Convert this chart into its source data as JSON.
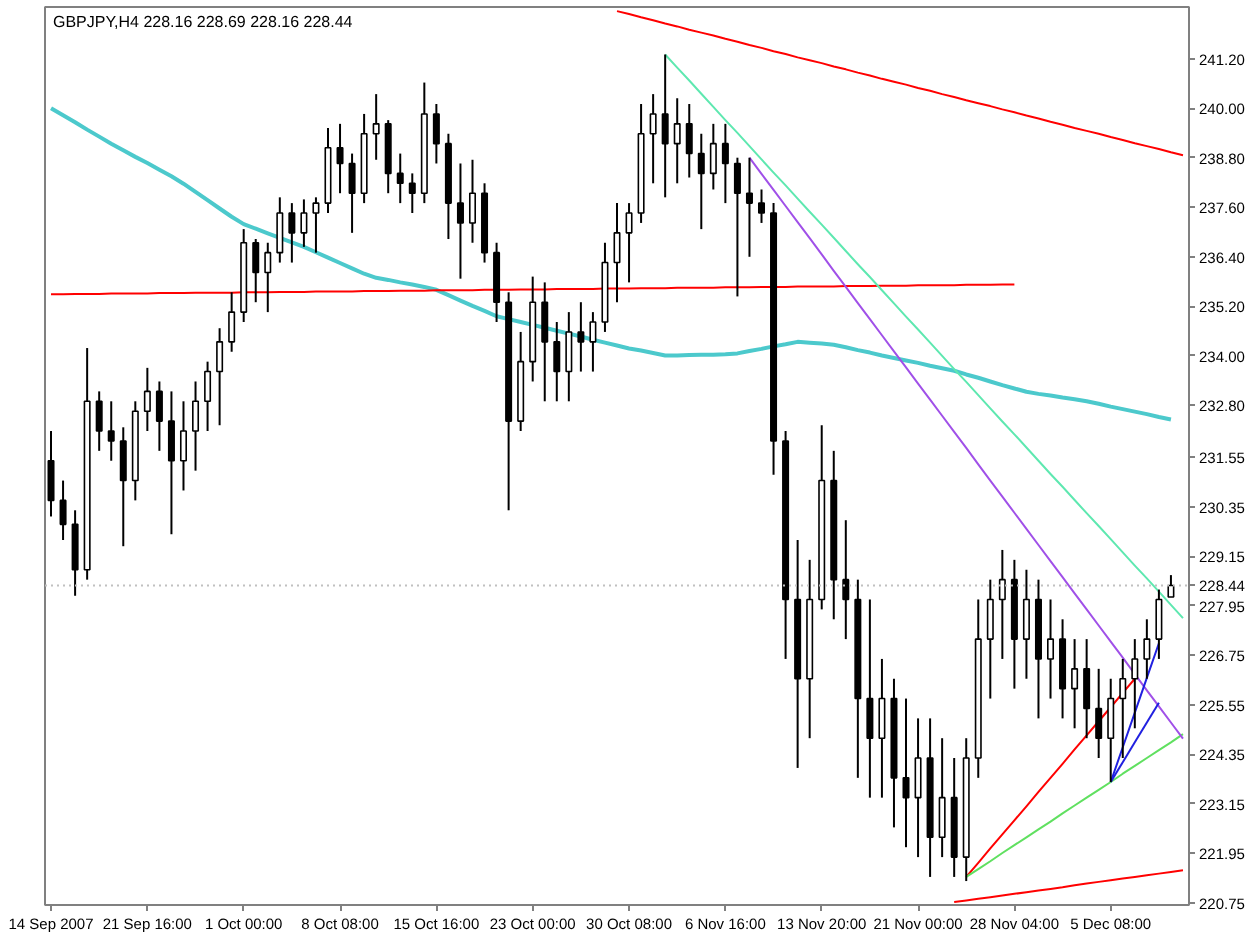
{
  "chart_data": {
    "type": "candlestick",
    "title": "GBPJPY,H4 228.16 228.69 228.16 228.44",
    "categories": [
      "14 Sep 2007",
      null,
      null,
      null,
      null,
      null,
      null,
      null,
      "21 Sep 16:00",
      null,
      null,
      null,
      null,
      null,
      null,
      null,
      "1 Oct 00:00",
      null,
      null,
      null,
      null,
      null,
      null,
      null,
      "8 Oct 08:00",
      null,
      null,
      null,
      null,
      null,
      null,
      null,
      "15 Oct 16:00",
      null,
      null,
      null,
      null,
      null,
      null,
      null,
      "23 Oct 00:00",
      null,
      null,
      null,
      null,
      null,
      null,
      null,
      "30 Oct 08:00",
      null,
      null,
      null,
      null,
      null,
      null,
      null,
      "6 Nov 16:00",
      null,
      null,
      null,
      null,
      null,
      null,
      null,
      "13 Nov 20:00",
      null,
      null,
      null,
      null,
      null,
      null,
      null,
      "21 Nov 00:00",
      null,
      null,
      null,
      null,
      null,
      null,
      null,
      "28 Nov 04:00",
      null,
      null,
      null,
      null,
      null,
      null,
      null,
      "5 Dec 08:00",
      null,
      null,
      null,
      null,
      null,
      null
    ],
    "ylim": [
      220.7,
      242.45
    ],
    "yticks": [
      {
        "value": 220.75,
        "label": "220.75"
      },
      {
        "value": 221.95,
        "label": "221.95"
      },
      {
        "value": 223.15,
        "label": "223.15"
      },
      {
        "value": 224.35,
        "label": "224.35"
      },
      {
        "value": 225.55,
        "label": "225.55"
      },
      {
        "value": 226.75,
        "label": "226.75"
      },
      {
        "value": 227.95,
        "label": "227.95"
      },
      {
        "value": 229.15,
        "label": "229.15"
      },
      {
        "value": 230.35,
        "label": "230.35"
      },
      {
        "value": 231.55,
        "label": "231.55"
      },
      {
        "value": 232.8,
        "label": "232.80"
      },
      {
        "value": 234.0,
        "label": "234.00"
      },
      {
        "value": 235.2,
        "label": "235.20"
      },
      {
        "value": 236.4,
        "label": "236.40"
      },
      {
        "value": 237.6,
        "label": "237.60"
      },
      {
        "value": 238.8,
        "label": "238.80"
      },
      {
        "value": 240.0,
        "label": "240.00"
      },
      {
        "value": 241.2,
        "label": "241.20"
      }
    ],
    "ref_lines": [
      {
        "axis": "y",
        "value": 228.44,
        "label": "228.44",
        "color": "#c0c0c0",
        "line_style": "dotted"
      }
    ],
    "series": [
      {
        "color": "#000000",
        "ohlc": [
          [
            231.46,
            232.18,
            230.11,
            230.5
          ],
          [
            230.5,
            230.98,
            229.54,
            229.92
          ],
          [
            229.92,
            230.26,
            228.19,
            228.82
          ],
          [
            228.82,
            234.19,
            228.58,
            232.9
          ],
          [
            232.9,
            233.14,
            231.7,
            232.18
          ],
          [
            232.18,
            232.9,
            231.46,
            231.94
          ],
          [
            231.94,
            232.27,
            229.39,
            230.98
          ],
          [
            230.98,
            232.9,
            230.5,
            232.66
          ],
          [
            232.66,
            233.71,
            232.18,
            233.14
          ],
          [
            233.14,
            233.38,
            231.7,
            232.42
          ],
          [
            232.42,
            233.14,
            229.68,
            231.46
          ],
          [
            231.46,
            232.9,
            230.74,
            232.18
          ],
          [
            232.18,
            233.38,
            231.22,
            232.9
          ],
          [
            232.9,
            233.86,
            232.18,
            233.62
          ],
          [
            233.62,
            234.67,
            232.32,
            234.34
          ],
          [
            234.34,
            235.54,
            234.1,
            235.06
          ],
          [
            235.06,
            237.07,
            234.82,
            236.74
          ],
          [
            236.74,
            236.83,
            235.3,
            236.02
          ],
          [
            236.02,
            236.74,
            235.06,
            236.5
          ],
          [
            236.5,
            237.84,
            236.26,
            237.46
          ],
          [
            237.46,
            237.7,
            236.26,
            236.98
          ],
          [
            236.98,
            237.79,
            236.64,
            237.46
          ],
          [
            237.46,
            237.84,
            236.5,
            237.7
          ],
          [
            237.7,
            239.52,
            237.46,
            239.04
          ],
          [
            239.04,
            239.62,
            237.94,
            238.66
          ],
          [
            238.66,
            238.9,
            236.98,
            237.94
          ],
          [
            237.94,
            239.86,
            237.7,
            239.38
          ],
          [
            239.38,
            240.34,
            238.75,
            239.62
          ],
          [
            239.62,
            239.71,
            237.94,
            238.42
          ],
          [
            238.42,
            238.9,
            237.7,
            238.18
          ],
          [
            238.18,
            238.42,
            237.46,
            237.94
          ],
          [
            237.94,
            240.62,
            237.7,
            239.86
          ],
          [
            239.86,
            240.1,
            238.66,
            239.14
          ],
          [
            239.14,
            239.38,
            236.83,
            237.7
          ],
          [
            237.7,
            238.66,
            235.87,
            237.22
          ],
          [
            237.22,
            238.75,
            236.74,
            237.94
          ],
          [
            237.94,
            238.18,
            236.26,
            236.5
          ],
          [
            236.5,
            236.74,
            234.82,
            235.3
          ],
          [
            235.3,
            235.54,
            230.26,
            232.42
          ],
          [
            232.42,
            234.58,
            232.18,
            233.86
          ],
          [
            233.86,
            235.92,
            233.38,
            235.3
          ],
          [
            235.3,
            235.78,
            232.9,
            234.34
          ],
          [
            234.34,
            234.82,
            232.9,
            233.62
          ],
          [
            233.62,
            235.06,
            232.9,
            234.58
          ],
          [
            234.58,
            235.3,
            233.62,
            234.34
          ],
          [
            234.34,
            235.06,
            233.62,
            234.82
          ],
          [
            234.82,
            236.74,
            234.58,
            236.26
          ],
          [
            236.26,
            237.7,
            235.3,
            236.98
          ],
          [
            236.98,
            237.7,
            235.78,
            237.46
          ],
          [
            237.46,
            240.1,
            237.22,
            239.38
          ],
          [
            239.38,
            240.34,
            238.18,
            239.86
          ],
          [
            239.86,
            241.3,
            237.84,
            239.14
          ],
          [
            239.14,
            240.24,
            238.18,
            239.62
          ],
          [
            239.62,
            240.1,
            238.32,
            238.9
          ],
          [
            238.9,
            239.38,
            237.07,
            238.42
          ],
          [
            238.42,
            239.62,
            238.03,
            239.14
          ],
          [
            239.14,
            239.62,
            237.7,
            238.66
          ],
          [
            238.66,
            238.8,
            235.44,
            237.94
          ],
          [
            237.94,
            238.8,
            236.4,
            237.7
          ],
          [
            237.7,
            238.03,
            237.22,
            237.46
          ],
          [
            237.46,
            237.7,
            231.12,
            231.94
          ],
          [
            231.94,
            232.18,
            226.66,
            228.1
          ],
          [
            228.1,
            229.54,
            224.02,
            226.18
          ],
          [
            226.18,
            229.06,
            224.74,
            228.1
          ],
          [
            228.1,
            232.32,
            227.86,
            230.98
          ],
          [
            230.98,
            231.7,
            227.62,
            228.58
          ],
          [
            228.58,
            230.02,
            227.14,
            228.1
          ],
          [
            228.1,
            228.58,
            223.78,
            225.7
          ],
          [
            225.7,
            228.1,
            223.3,
            224.74
          ],
          [
            224.74,
            226.66,
            223.3,
            225.7
          ],
          [
            225.7,
            226.18,
            222.58,
            223.78
          ],
          [
            223.78,
            225.7,
            222.1,
            223.3
          ],
          [
            223.3,
            225.22,
            221.86,
            224.26
          ],
          [
            224.26,
            225.22,
            221.38,
            222.34
          ],
          [
            222.34,
            224.74,
            221.86,
            223.3
          ],
          [
            223.3,
            224.26,
            221.38,
            221.86
          ],
          [
            221.86,
            224.74,
            221.28,
            224.26
          ],
          [
            224.26,
            228.1,
            223.78,
            227.14
          ],
          [
            227.14,
            228.58,
            225.7,
            228.1
          ],
          [
            228.1,
            229.3,
            226.66,
            228.58
          ],
          [
            228.58,
            229.06,
            225.94,
            227.14
          ],
          [
            227.14,
            228.82,
            226.18,
            228.1
          ],
          [
            228.1,
            228.58,
            225.22,
            226.66
          ],
          [
            226.66,
            228.1,
            225.7,
            227.14
          ],
          [
            227.14,
            227.62,
            225.22,
            225.94
          ],
          [
            225.94,
            227.14,
            224.98,
            226.42
          ],
          [
            226.42,
            227.14,
            224.74,
            225.46
          ],
          [
            225.46,
            226.42,
            224.26,
            224.74
          ],
          [
            224.74,
            226.18,
            223.68,
            225.7
          ],
          [
            225.7,
            226.66,
            224.26,
            226.18
          ],
          [
            226.18,
            227.14,
            224.98,
            226.66
          ],
          [
            226.66,
            227.62,
            226.18,
            227.14
          ],
          [
            227.14,
            228.34,
            226.66,
            228.1
          ],
          [
            228.16,
            228.69,
            228.16,
            228.44
          ],
          null
        ]
      },
      {
        "type": "line",
        "color": "#4cc9cc",
        "values": [
          240.0,
          239.83,
          239.66,
          239.48,
          239.31,
          239.14,
          238.98,
          238.82,
          238.67,
          238.51,
          238.35,
          238.17,
          237.97,
          237.77,
          237.57,
          237.37,
          237.19,
          237.08,
          236.97,
          236.86,
          236.75,
          236.64,
          236.51,
          236.38,
          236.25,
          236.12,
          235.99,
          235.89,
          235.84,
          235.78,
          235.73,
          235.67,
          235.6,
          235.47,
          235.34,
          235.21,
          235.09,
          234.96,
          234.89,
          234.82,
          234.75,
          234.68,
          234.61,
          234.54,
          234.47,
          234.39,
          234.32,
          234.25,
          234.18,
          234.13,
          234.07,
          234.01,
          234.01,
          234.02,
          234.03,
          234.03,
          234.04,
          234.06,
          234.12,
          234.17,
          234.23,
          234.28,
          234.34,
          234.32,
          234.3,
          234.27,
          234.21,
          234.14,
          234.08,
          234.01,
          233.95,
          233.89,
          233.83,
          233.76,
          233.7,
          233.64,
          233.55,
          233.47,
          233.38,
          233.29,
          233.21,
          233.13,
          233.08,
          233.04,
          232.99,
          232.95,
          232.9,
          232.84,
          232.77,
          232.71,
          232.65,
          232.59,
          232.52,
          232.46,
          null
        ]
      },
      {
        "type": "line",
        "color": "#ff0000",
        "values": [
          235.49,
          235.49,
          235.5,
          235.5,
          235.5,
          235.51,
          235.51,
          235.51,
          235.51,
          235.52,
          235.52,
          235.52,
          235.53,
          235.53,
          235.53,
          235.53,
          235.54,
          235.54,
          235.54,
          235.55,
          235.55,
          235.55,
          235.56,
          235.56,
          235.56,
          235.56,
          235.57,
          235.57,
          235.57,
          235.58,
          235.58,
          235.58,
          235.59,
          235.59,
          235.59,
          235.59,
          235.6,
          235.6,
          235.6,
          235.61,
          235.61,
          235.61,
          235.62,
          235.62,
          235.62,
          235.62,
          235.63,
          235.63,
          235.63,
          235.64,
          235.64,
          235.64,
          235.65,
          235.65,
          235.65,
          235.65,
          235.66,
          235.66,
          235.66,
          235.67,
          235.67,
          235.67,
          235.68,
          235.68,
          235.68,
          235.68,
          235.69,
          235.69,
          235.69,
          235.7,
          235.7,
          235.7,
          235.71,
          235.71,
          235.71,
          235.71,
          235.72,
          235.72,
          235.72,
          235.73,
          235.73,
          null,
          null,
          null,
          null,
          null,
          null,
          null,
          null,
          null,
          null,
          null,
          null,
          null,
          null
        ]
      },
      {
        "type": "line",
        "color": "#ff0000",
        "values": [
          null,
          null,
          null,
          null,
          null,
          null,
          null,
          null,
          null,
          null,
          null,
          null,
          null,
          null,
          null,
          null,
          null,
          null,
          null,
          null,
          null,
          null,
          null,
          null,
          null,
          null,
          null,
          null,
          null,
          null,
          null,
          null,
          null,
          null,
          null,
          null,
          null,
          null,
          null,
          null,
          null,
          null,
          null,
          null,
          null,
          null,
          null,
          242.35,
          242.28,
          242.2,
          242.13,
          242.05,
          241.98,
          241.9,
          241.83,
          241.76,
          241.68,
          241.61,
          241.53,
          241.46,
          241.38,
          241.31,
          241.23,
          241.16,
          241.09,
          241.01,
          240.94,
          240.86,
          240.79,
          240.71,
          240.64,
          240.57,
          240.49,
          240.42,
          240.34,
          240.27,
          240.19,
          240.12,
          240.05,
          239.97,
          239.9,
          239.82,
          239.75,
          239.67,
          239.6,
          239.52,
          239.45,
          239.38,
          239.3,
          239.23,
          239.15,
          239.08,
          239.01,
          238.93,
          238.86
        ]
      },
      {
        "type": "line",
        "color": "#ff0000",
        "values": [
          null,
          null,
          null,
          null,
          null,
          null,
          null,
          null,
          null,
          null,
          null,
          null,
          null,
          null,
          null,
          null,
          null,
          null,
          null,
          null,
          null,
          null,
          null,
          null,
          null,
          null,
          null,
          null,
          null,
          null,
          null,
          null,
          null,
          null,
          null,
          null,
          null,
          null,
          null,
          null,
          null,
          null,
          null,
          null,
          null,
          null,
          null,
          null,
          null,
          null,
          null,
          null,
          null,
          null,
          null,
          null,
          null,
          null,
          null,
          null,
          null,
          null,
          null,
          null,
          null,
          null,
          null,
          null,
          null,
          null,
          null,
          null,
          null,
          null,
          null,
          220.77,
          220.81,
          220.85,
          220.89,
          220.93,
          220.97,
          221.01,
          221.05,
          221.09,
          221.13,
          221.18,
          221.22,
          221.26,
          221.3,
          221.34,
          221.38,
          221.42,
          221.46,
          221.5,
          221.54
        ]
      },
      {
        "type": "line",
        "color": "#ff0000",
        "values": [
          null,
          null,
          null,
          null,
          null,
          null,
          null,
          null,
          null,
          null,
          null,
          null,
          null,
          null,
          null,
          null,
          null,
          null,
          null,
          null,
          null,
          null,
          null,
          null,
          null,
          null,
          null,
          null,
          null,
          null,
          null,
          null,
          null,
          null,
          null,
          null,
          null,
          null,
          null,
          null,
          null,
          null,
          null,
          null,
          null,
          null,
          null,
          null,
          null,
          null,
          null,
          null,
          null,
          null,
          null,
          null,
          null,
          null,
          null,
          null,
          null,
          null,
          null,
          null,
          null,
          null,
          null,
          null,
          null,
          null,
          null,
          null,
          null,
          null,
          null,
          null,
          221.38,
          221.72,
          222.07,
          222.41,
          222.75,
          223.09,
          223.44,
          223.78,
          224.12,
          224.47,
          224.81,
          225.15,
          225.49,
          225.84,
          226.18,
          null,
          null,
          null,
          null
        ]
      },
      {
        "type": "line",
        "color": "#60e060",
        "values": [
          null,
          null,
          null,
          null,
          null,
          null,
          null,
          null,
          null,
          null,
          null,
          null,
          null,
          null,
          null,
          null,
          null,
          null,
          null,
          null,
          null,
          null,
          null,
          null,
          null,
          null,
          null,
          null,
          null,
          null,
          null,
          null,
          null,
          null,
          null,
          null,
          null,
          null,
          null,
          null,
          null,
          null,
          null,
          null,
          null,
          null,
          null,
          null,
          null,
          null,
          null,
          null,
          null,
          null,
          null,
          null,
          null,
          null,
          null,
          null,
          null,
          null,
          null,
          null,
          null,
          null,
          null,
          null,
          null,
          null,
          null,
          null,
          null,
          null,
          null,
          null,
          221.38,
          221.57,
          221.76,
          221.96,
          222.15,
          222.34,
          222.53,
          222.72,
          222.92,
          223.11,
          223.3,
          223.49,
          223.68,
          223.88,
          224.07,
          224.26,
          224.45,
          224.64,
          224.84
        ]
      },
      {
        "type": "line",
        "color": "#a050e8",
        "values": [
          null,
          null,
          null,
          null,
          null,
          null,
          null,
          null,
          null,
          null,
          null,
          null,
          null,
          null,
          null,
          null,
          null,
          null,
          null,
          null,
          null,
          null,
          null,
          null,
          null,
          null,
          null,
          null,
          null,
          null,
          null,
          null,
          null,
          null,
          null,
          null,
          null,
          null,
          null,
          null,
          null,
          null,
          null,
          null,
          null,
          null,
          null,
          null,
          null,
          null,
          null,
          null,
          null,
          null,
          null,
          null,
          null,
          null,
          238.8,
          238.41,
          238.02,
          237.63,
          237.24,
          236.85,
          236.46,
          236.06,
          235.67,
          235.28,
          234.89,
          234.5,
          234.11,
          233.72,
          233.33,
          232.94,
          232.55,
          232.16,
          231.77,
          231.37,
          230.98,
          230.59,
          230.2,
          229.81,
          229.42,
          229.03,
          228.64,
          228.25,
          227.86,
          227.47,
          227.08,
          226.69,
          226.29,
          225.9,
          225.51,
          225.12,
          224.73
        ]
      },
      {
        "type": "line",
        "color": "#5ee8b0",
        "values": [
          null,
          null,
          null,
          null,
          null,
          null,
          null,
          null,
          null,
          null,
          null,
          null,
          null,
          null,
          null,
          null,
          null,
          null,
          null,
          null,
          null,
          null,
          null,
          null,
          null,
          null,
          null,
          null,
          null,
          null,
          null,
          null,
          null,
          null,
          null,
          null,
          null,
          null,
          null,
          null,
          null,
          null,
          null,
          null,
          null,
          null,
          null,
          null,
          null,
          null,
          null,
          241.3,
          240.98,
          240.67,
          240.35,
          240.03,
          239.71,
          239.4,
          239.08,
          238.76,
          238.44,
          238.13,
          237.81,
          237.49,
          237.18,
          236.86,
          236.54,
          236.22,
          235.91,
          235.59,
          235.27,
          234.95,
          234.64,
          234.32,
          234.0,
          233.68,
          233.37,
          233.05,
          232.73,
          232.41,
          232.1,
          231.78,
          231.46,
          231.14,
          230.83,
          230.51,
          230.19,
          229.88,
          229.56,
          229.24,
          228.92,
          228.61,
          228.29,
          227.97,
          227.65
        ]
      },
      {
        "type": "line",
        "color": "#2020e0",
        "values": [
          null,
          null,
          null,
          null,
          null,
          null,
          null,
          null,
          null,
          null,
          null,
          null,
          null,
          null,
          null,
          null,
          null,
          null,
          null,
          null,
          null,
          null,
          null,
          null,
          null,
          null,
          null,
          null,
          null,
          null,
          null,
          null,
          null,
          null,
          null,
          null,
          null,
          null,
          null,
          null,
          null,
          null,
          null,
          null,
          null,
          null,
          null,
          null,
          null,
          null,
          null,
          null,
          null,
          null,
          null,
          null,
          null,
          null,
          null,
          null,
          null,
          null,
          null,
          null,
          null,
          null,
          null,
          null,
          null,
          null,
          null,
          null,
          null,
          null,
          null,
          null,
          null,
          null,
          null,
          null,
          null,
          null,
          null,
          null,
          null,
          null,
          null,
          null,
          223.68,
          224.52,
          225.36,
          226.2,
          227.04,
          null,
          null
        ]
      },
      {
        "type": "line",
        "color": "#2020e0",
        "values": [
          null,
          null,
          null,
          null,
          null,
          null,
          null,
          null,
          null,
          null,
          null,
          null,
          null,
          null,
          null,
          null,
          null,
          null,
          null,
          null,
          null,
          null,
          null,
          null,
          null,
          null,
          null,
          null,
          null,
          null,
          null,
          null,
          null,
          null,
          null,
          null,
          null,
          null,
          null,
          null,
          null,
          null,
          null,
          null,
          null,
          null,
          null,
          null,
          null,
          null,
          null,
          null,
          null,
          null,
          null,
          null,
          null,
          null,
          null,
          null,
          null,
          null,
          null,
          null,
          null,
          null,
          null,
          null,
          null,
          null,
          null,
          null,
          null,
          null,
          null,
          null,
          null,
          null,
          null,
          null,
          null,
          null,
          null,
          null,
          null,
          null,
          null,
          null,
          223.68,
          224.16,
          224.64,
          225.12,
          225.6,
          null,
          null
        ]
      }
    ]
  }
}
